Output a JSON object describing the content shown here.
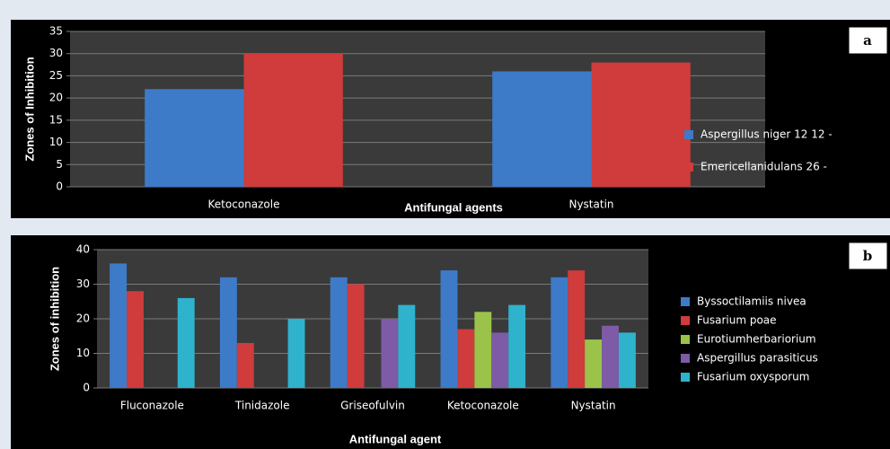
{
  "chart_data": [
    {
      "type": "bar",
      "panel_label": "a",
      "categories": [
        "Ketoconazole",
        "Nystatin"
      ],
      "series": [
        {
          "name": "Aspergillus niger 12 12 -",
          "color": "#3d7bc9",
          "values": [
            22,
            26
          ]
        },
        {
          "name": "Emericellanidulans 26 -",
          "color": "#d03b3b",
          "values": [
            30,
            28
          ]
        }
      ],
      "xlabel": "Antifungal agents",
      "ylabel": "Zones of Inhibition",
      "ylim": [
        0,
        35
      ],
      "yticks": [
        0,
        5,
        10,
        15,
        20,
        25,
        30,
        35
      ],
      "grid": true
    },
    {
      "type": "bar",
      "panel_label": "b",
      "categories": [
        "Fluconazole",
        "Tinidazole",
        "Griseofulvin",
        "Ketoconazole",
        "Nystatin"
      ],
      "series": [
        {
          "name": "Byssoctilamiis nivea",
          "color": "#3d7bc9",
          "values": [
            36,
            32,
            32,
            34,
            32
          ]
        },
        {
          "name": "Fusarium poae",
          "color": "#d03b3b",
          "values": [
            28,
            13,
            30,
            17,
            34
          ]
        },
        {
          "name": "Eurotiumherbariorium",
          "color": "#9bc34a",
          "values": [
            null,
            null,
            null,
            22,
            14
          ]
        },
        {
          "name": "Aspergillus parasiticus",
          "color": "#7d5ba6",
          "values": [
            null,
            null,
            20,
            16,
            18
          ]
        },
        {
          "name": "Fusarium oxysporum",
          "color": "#2fb2cc",
          "values": [
            26,
            20,
            24,
            24,
            16
          ]
        }
      ],
      "xlabel": "Antifungal agent",
      "ylabel": "Zones of inhibition",
      "ylim": [
        0,
        40
      ],
      "yticks": [
        0,
        10,
        20,
        30,
        40
      ],
      "grid": true
    }
  ]
}
